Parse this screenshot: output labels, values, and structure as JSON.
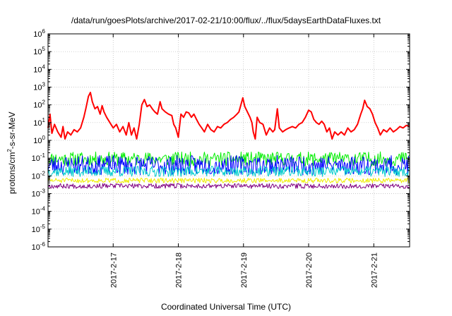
{
  "chart_data": {
    "type": "line",
    "title": "/data/run/goesPlots/archive/2017-02-21/10:00/flux/../flux/5daysEarthDataFluxes.txt",
    "xlabel": "Coordinated Universal Time (UTC)",
    "ylabel": {
      "before": "protons/cm",
      "sup": "2",
      "after": "-s-sr-MeV"
    },
    "yscale": "log",
    "ylim": [
      1e-06,
      1000000.0
    ],
    "xlim": [
      0,
      5.55
    ],
    "x_unit": "days since 2017-02-16 00:00 UTC",
    "grid": true,
    "y_ticks": [
      {
        "exp": -6,
        "label_base": "10",
        "label_exp": "-6"
      },
      {
        "exp": -5,
        "label_base": "10",
        "label_exp": "-5"
      },
      {
        "exp": -4,
        "label_base": "10",
        "label_exp": "-4"
      },
      {
        "exp": -3,
        "label_base": "10",
        "label_exp": "-3"
      },
      {
        "exp": -2,
        "label_base": "10",
        "label_exp": "-2"
      },
      {
        "exp": -1,
        "label_base": "10",
        "label_exp": "-1"
      },
      {
        "exp": 0,
        "label_base": "10",
        "label_exp": "0"
      },
      {
        "exp": 1,
        "label_base": "10",
        "label_exp": "1"
      },
      {
        "exp": 2,
        "label_base": "10",
        "label_exp": "2"
      },
      {
        "exp": 3,
        "label_base": "10",
        "label_exp": "3"
      },
      {
        "exp": 4,
        "label_base": "10",
        "label_exp": "4"
      },
      {
        "exp": 5,
        "label_base": "10",
        "label_exp": "5"
      },
      {
        "exp": 6,
        "label_base": "10",
        "label_exp": "6"
      }
    ],
    "x_ticks": [
      {
        "x": 1,
        "label": "2017-2-17"
      },
      {
        "x": 2,
        "label": "2017-2-18"
      },
      {
        "x": 3,
        "label": "2017-2-19"
      },
      {
        "x": 4,
        "label": "2017-2-20"
      },
      {
        "x": 5,
        "label": "2017-2-21"
      }
    ],
    "series": [
      {
        "color": "#ff0000",
        "width": 2,
        "points": [
          [
            0.0,
            5
          ],
          [
            0.03,
            30
          ],
          [
            0.06,
            2.5
          ],
          [
            0.1,
            8
          ],
          [
            0.15,
            3
          ],
          [
            0.2,
            1.5
          ],
          [
            0.23,
            6
          ],
          [
            0.26,
            1.2
          ],
          [
            0.3,
            3
          ],
          [
            0.35,
            2
          ],
          [
            0.4,
            4
          ],
          [
            0.45,
            3
          ],
          [
            0.5,
            5
          ],
          [
            0.55,
            20
          ],
          [
            0.58,
            60
          ],
          [
            0.62,
            300
          ],
          [
            0.65,
            500
          ],
          [
            0.68,
            150
          ],
          [
            0.72,
            60
          ],
          [
            0.76,
            80
          ],
          [
            0.8,
            30
          ],
          [
            0.83,
            90
          ],
          [
            0.86,
            40
          ],
          [
            0.9,
            20
          ],
          [
            0.95,
            10
          ],
          [
            1.0,
            5
          ],
          [
            1.05,
            8
          ],
          [
            1.1,
            3
          ],
          [
            1.15,
            6
          ],
          [
            1.2,
            2
          ],
          [
            1.24,
            10
          ],
          [
            1.28,
            2
          ],
          [
            1.32,
            5
          ],
          [
            1.36,
            1.2
          ],
          [
            1.4,
            8
          ],
          [
            1.44,
            100
          ],
          [
            1.48,
            200
          ],
          [
            1.52,
            80
          ],
          [
            1.56,
            100
          ],
          [
            1.6,
            60
          ],
          [
            1.64,
            40
          ],
          [
            1.68,
            30
          ],
          [
            1.72,
            150
          ],
          [
            1.75,
            60
          ],
          [
            1.8,
            40
          ],
          [
            1.85,
            30
          ],
          [
            1.9,
            25
          ],
          [
            1.93,
            8
          ],
          [
            1.96,
            5
          ],
          [
            2.0,
            1.5
          ],
          [
            2.04,
            30
          ],
          [
            2.08,
            20
          ],
          [
            2.12,
            40
          ],
          [
            2.16,
            35
          ],
          [
            2.2,
            20
          ],
          [
            2.24,
            30
          ],
          [
            2.28,
            15
          ],
          [
            2.32,
            8
          ],
          [
            2.36,
            5
          ],
          [
            2.4,
            3
          ],
          [
            2.45,
            8
          ],
          [
            2.5,
            4
          ],
          [
            2.55,
            3
          ],
          [
            2.6,
            6
          ],
          [
            2.65,
            5
          ],
          [
            2.7,
            8
          ],
          [
            2.75,
            10
          ],
          [
            2.8,
            15
          ],
          [
            2.85,
            20
          ],
          [
            2.9,
            30
          ],
          [
            2.93,
            40
          ],
          [
            2.96,
            100
          ],
          [
            2.99,
            250
          ],
          [
            3.02,
            80
          ],
          [
            3.06,
            40
          ],
          [
            3.1,
            20
          ],
          [
            3.13,
            10
          ],
          [
            3.15,
            3
          ],
          [
            3.18,
            1.2
          ],
          [
            3.21,
            20
          ],
          [
            3.25,
            10
          ],
          [
            3.3,
            8
          ],
          [
            3.35,
            2
          ],
          [
            3.4,
            5
          ],
          [
            3.45,
            3
          ],
          [
            3.48,
            4
          ],
          [
            3.52,
            60
          ],
          [
            3.55,
            5
          ],
          [
            3.6,
            3
          ],
          [
            3.65,
            4
          ],
          [
            3.7,
            5
          ],
          [
            3.75,
            6
          ],
          [
            3.8,
            5
          ],
          [
            3.85,
            8
          ],
          [
            3.9,
            10
          ],
          [
            3.95,
            20
          ],
          [
            4.0,
            50
          ],
          [
            4.04,
            40
          ],
          [
            4.08,
            15
          ],
          [
            4.12,
            10
          ],
          [
            4.16,
            8
          ],
          [
            4.2,
            12
          ],
          [
            4.24,
            8
          ],
          [
            4.28,
            3
          ],
          [
            4.32,
            5
          ],
          [
            4.36,
            1.2
          ],
          [
            4.4,
            3
          ],
          [
            4.45,
            2
          ],
          [
            4.5,
            3
          ],
          [
            4.55,
            2
          ],
          [
            4.6,
            5
          ],
          [
            4.65,
            3
          ],
          [
            4.7,
            4
          ],
          [
            4.75,
            8
          ],
          [
            4.8,
            30
          ],
          [
            4.83,
            60
          ],
          [
            4.86,
            180
          ],
          [
            4.9,
            80
          ],
          [
            4.94,
            60
          ],
          [
            4.98,
            30
          ],
          [
            5.02,
            10
          ],
          [
            5.06,
            5
          ],
          [
            5.1,
            2
          ],
          [
            5.15,
            4
          ],
          [
            5.2,
            3
          ],
          [
            5.25,
            5
          ],
          [
            5.3,
            3
          ],
          [
            5.35,
            4
          ],
          [
            5.4,
            6
          ],
          [
            5.45,
            5
          ],
          [
            5.5,
            7
          ],
          [
            5.55,
            6
          ]
        ]
      },
      {
        "color": "#00ee00",
        "width": 1,
        "noise": {
          "center": 0.09,
          "spread": 0.4,
          "step": 0.012,
          "seed": 11
        }
      },
      {
        "color": "#0000ff",
        "width": 1,
        "noise": {
          "center": 0.04,
          "spread": 0.55,
          "step": 0.012,
          "seed": 23
        }
      },
      {
        "color": "#00cccc",
        "width": 1,
        "noise": {
          "center": 0.018,
          "spread": 0.3,
          "step": 0.012,
          "seed": 37
        }
      },
      {
        "color": "#eeee00",
        "width": 1,
        "noise": {
          "center": 0.0055,
          "spread": 0.14,
          "step": 0.012,
          "seed": 51
        }
      },
      {
        "color": "#800080",
        "width": 1,
        "noise": {
          "center": 0.0027,
          "spread": 0.14,
          "step": 0.012,
          "seed": 67
        }
      }
    ]
  }
}
